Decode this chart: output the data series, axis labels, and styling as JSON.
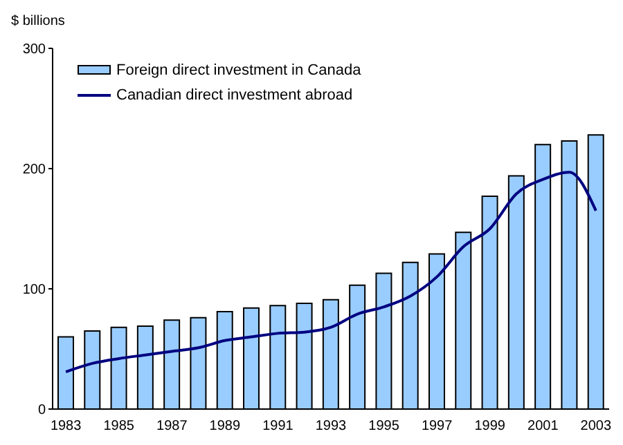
{
  "chart_data": {
    "type": "bar",
    "annotations": [
      "$ billions"
    ],
    "categories": [
      "1983",
      null,
      "1985",
      null,
      "1987",
      null,
      "1989",
      null,
      "1991",
      null,
      "1993",
      null,
      "1995",
      null,
      "1997",
      null,
      "1999",
      null,
      "2001",
      null,
      "2003"
    ],
    "series": [
      {
        "name": "Foreign direct investment in Canada",
        "color": "#99ccff",
        "values": [
          60,
          65,
          68,
          69,
          74,
          76,
          81,
          84,
          86,
          88,
          91,
          103,
          113,
          122,
          129,
          147,
          177,
          194,
          220,
          223,
          228
        ]
      },
      {
        "name": "Canadian direct investment abroad",
        "type": "line",
        "color": "#000080",
        "values": [
          31,
          38,
          42,
          45,
          48,
          51,
          57,
          60,
          63,
          64,
          68,
          79,
          85,
          94,
          110,
          135,
          150,
          179,
          191,
          197,
          165
        ]
      }
    ],
    "ylim": [
      0,
      300
    ],
    "yticks": [
      0,
      100,
      200,
      300
    ],
    "grid": false,
    "legend": "top left",
    "marker": "none",
    "line_style": "solid"
  }
}
